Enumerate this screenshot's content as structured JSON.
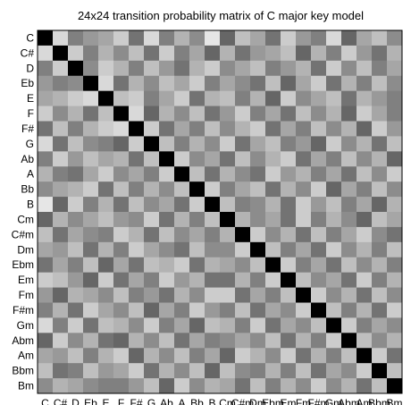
{
  "chart_data": {
    "type": "heatmap",
    "title": "24x24 transition probability matrix of C major key model",
    "xlabel": "",
    "ylabel": "",
    "colormap": "grayscale-inverted",
    "labels": [
      "C",
      "C#",
      "D",
      "Eb",
      "E",
      "F",
      "F#",
      "G",
      "Ab",
      "A",
      "Bb",
      "B",
      "Cm",
      "C#m",
      "Dm",
      "Ebm",
      "Em",
      "Fm",
      "F#m",
      "Gm",
      "Abm",
      "Am",
      "Bbm",
      "Bm"
    ],
    "matrix": [
      [
        1.0,
        0.15,
        0.5,
        0.4,
        0.35,
        0.2,
        0.55,
        0.15,
        0.5,
        0.3,
        0.45,
        0.1,
        0.6,
        0.25,
        0.35,
        0.55,
        0.2,
        0.4,
        0.5,
        0.15,
        0.6,
        0.35,
        0.25,
        0.45
      ],
      [
        0.15,
        1.0,
        0.2,
        0.5,
        0.3,
        0.45,
        0.25,
        0.55,
        0.2,
        0.5,
        0.35,
        0.6,
        0.3,
        0.55,
        0.4,
        0.35,
        0.25,
        0.6,
        0.3,
        0.5,
        0.2,
        0.4,
        0.55,
        0.3
      ],
      [
        0.5,
        0.2,
        1.0,
        0.45,
        0.2,
        0.3,
        0.5,
        0.25,
        0.4,
        0.55,
        0.3,
        0.2,
        0.45,
        0.35,
        0.25,
        0.5,
        0.4,
        0.3,
        0.55,
        0.2,
        0.45,
        0.25,
        0.5,
        0.35
      ],
      [
        0.4,
        0.5,
        0.45,
        1.0,
        0.15,
        0.55,
        0.3,
        0.45,
        0.25,
        0.35,
        0.2,
        0.5,
        0.35,
        0.45,
        0.55,
        0.25,
        0.6,
        0.35,
        0.2,
        0.55,
        0.3,
        0.5,
        0.25,
        0.45
      ],
      [
        0.35,
        0.3,
        0.2,
        0.15,
        1.0,
        0.25,
        0.2,
        0.5,
        0.35,
        0.2,
        0.55,
        0.3,
        0.25,
        0.5,
        0.3,
        0.6,
        0.2,
        0.45,
        0.35,
        0.25,
        0.55,
        0.3,
        0.4,
        0.5
      ],
      [
        0.2,
        0.45,
        0.3,
        0.55,
        0.25,
        1.0,
        0.15,
        0.6,
        0.3,
        0.45,
        0.25,
        0.55,
        0.4,
        0.2,
        0.5,
        0.35,
        0.55,
        0.25,
        0.45,
        0.3,
        0.6,
        0.2,
        0.35,
        0.5
      ],
      [
        0.55,
        0.25,
        0.5,
        0.3,
        0.2,
        0.15,
        1.0,
        0.2,
        0.55,
        0.35,
        0.5,
        0.25,
        0.45,
        0.3,
        0.2,
        0.55,
        0.35,
        0.5,
        0.25,
        0.45,
        0.3,
        0.6,
        0.2,
        0.4
      ],
      [
        0.15,
        0.55,
        0.25,
        0.45,
        0.5,
        0.6,
        0.2,
        1.0,
        0.25,
        0.5,
        0.3,
        0.45,
        0.2,
        0.55,
        0.35,
        0.25,
        0.5,
        0.4,
        0.6,
        0.2,
        0.45,
        0.3,
        0.55,
        0.25
      ],
      [
        0.5,
        0.2,
        0.4,
        0.25,
        0.35,
        0.3,
        0.55,
        0.25,
        1.0,
        0.2,
        0.45,
        0.35,
        0.55,
        0.25,
        0.45,
        0.3,
        0.2,
        0.55,
        0.35,
        0.5,
        0.25,
        0.45,
        0.3,
        0.6
      ],
      [
        0.3,
        0.5,
        0.55,
        0.35,
        0.2,
        0.45,
        0.35,
        0.5,
        0.2,
        1.0,
        0.25,
        0.55,
        0.3,
        0.45,
        0.55,
        0.2,
        0.4,
        0.3,
        0.5,
        0.35,
        0.55,
        0.25,
        0.45,
        0.2
      ],
      [
        0.45,
        0.35,
        0.3,
        0.2,
        0.55,
        0.25,
        0.5,
        0.3,
        0.45,
        0.25,
        1.0,
        0.2,
        0.5,
        0.35,
        0.25,
        0.55,
        0.3,
        0.45,
        0.2,
        0.6,
        0.35,
        0.5,
        0.25,
        0.45
      ],
      [
        0.1,
        0.6,
        0.2,
        0.5,
        0.3,
        0.55,
        0.25,
        0.45,
        0.35,
        0.55,
        0.2,
        1.0,
        0.25,
        0.5,
        0.45,
        0.3,
        0.55,
        0.2,
        0.4,
        0.25,
        0.5,
        0.35,
        0.6,
        0.3
      ],
      [
        0.6,
        0.3,
        0.45,
        0.35,
        0.25,
        0.4,
        0.45,
        0.2,
        0.55,
        0.3,
        0.5,
        0.25,
        1.0,
        0.3,
        0.45,
        0.35,
        0.55,
        0.2,
        0.5,
        0.3,
        0.45,
        0.6,
        0.25,
        0.35
      ],
      [
        0.25,
        0.55,
        0.35,
        0.45,
        0.5,
        0.2,
        0.3,
        0.55,
        0.25,
        0.45,
        0.35,
        0.5,
        0.3,
        1.0,
        0.2,
        0.45,
        0.3,
        0.55,
        0.25,
        0.5,
        0.35,
        0.2,
        0.45,
        0.55
      ],
      [
        0.35,
        0.4,
        0.25,
        0.55,
        0.3,
        0.5,
        0.2,
        0.35,
        0.45,
        0.55,
        0.25,
        0.45,
        0.45,
        0.2,
        1.0,
        0.25,
        0.5,
        0.35,
        0.55,
        0.2,
        0.45,
        0.3,
        0.5,
        0.25
      ],
      [
        0.55,
        0.35,
        0.5,
        0.25,
        0.6,
        0.35,
        0.55,
        0.25,
        0.3,
        0.2,
        0.55,
        0.3,
        0.35,
        0.45,
        0.25,
        1.0,
        0.2,
        0.5,
        0.35,
        0.55,
        0.25,
        0.45,
        0.3,
        0.5
      ],
      [
        0.2,
        0.25,
        0.4,
        0.6,
        0.2,
        0.55,
        0.35,
        0.5,
        0.2,
        0.4,
        0.3,
        0.55,
        0.55,
        0.3,
        0.5,
        0.2,
        1.0,
        0.25,
        0.45,
        0.35,
        0.55,
        0.2,
        0.5,
        0.3
      ],
      [
        0.4,
        0.6,
        0.3,
        0.35,
        0.45,
        0.25,
        0.5,
        0.4,
        0.55,
        0.3,
        0.45,
        0.2,
        0.2,
        0.55,
        0.35,
        0.5,
        0.25,
        1.0,
        0.2,
        0.45,
        0.3,
        0.55,
        0.25,
        0.45
      ],
      [
        0.5,
        0.3,
        0.55,
        0.2,
        0.35,
        0.45,
        0.25,
        0.6,
        0.35,
        0.5,
        0.2,
        0.4,
        0.5,
        0.25,
        0.55,
        0.35,
        0.45,
        0.2,
        1.0,
        0.25,
        0.5,
        0.3,
        0.55,
        0.2
      ],
      [
        0.15,
        0.5,
        0.2,
        0.55,
        0.25,
        0.3,
        0.45,
        0.2,
        0.5,
        0.35,
        0.6,
        0.25,
        0.3,
        0.5,
        0.2,
        0.55,
        0.35,
        0.45,
        0.25,
        1.0,
        0.2,
        0.5,
        0.35,
        0.45
      ],
      [
        0.6,
        0.2,
        0.45,
        0.3,
        0.55,
        0.6,
        0.3,
        0.45,
        0.25,
        0.55,
        0.35,
        0.5,
        0.45,
        0.35,
        0.45,
        0.25,
        0.55,
        0.3,
        0.5,
        0.2,
        1.0,
        0.25,
        0.45,
        0.3
      ],
      [
        0.35,
        0.4,
        0.25,
        0.5,
        0.3,
        0.2,
        0.6,
        0.3,
        0.45,
        0.25,
        0.5,
        0.35,
        0.6,
        0.2,
        0.3,
        0.45,
        0.2,
        0.55,
        0.3,
        0.5,
        0.25,
        1.0,
        0.2,
        0.55
      ],
      [
        0.25,
        0.55,
        0.5,
        0.25,
        0.4,
        0.35,
        0.2,
        0.55,
        0.3,
        0.45,
        0.25,
        0.6,
        0.25,
        0.45,
        0.5,
        0.3,
        0.5,
        0.25,
        0.55,
        0.35,
        0.45,
        0.2,
        1.0,
        0.25
      ],
      [
        0.45,
        0.3,
        0.35,
        0.45,
        0.5,
        0.5,
        0.4,
        0.25,
        0.6,
        0.2,
        0.45,
        0.3,
        0.35,
        0.55,
        0.25,
        0.5,
        0.3,
        0.45,
        0.2,
        0.45,
        0.3,
        0.55,
        0.25,
        1.0
      ]
    ]
  }
}
